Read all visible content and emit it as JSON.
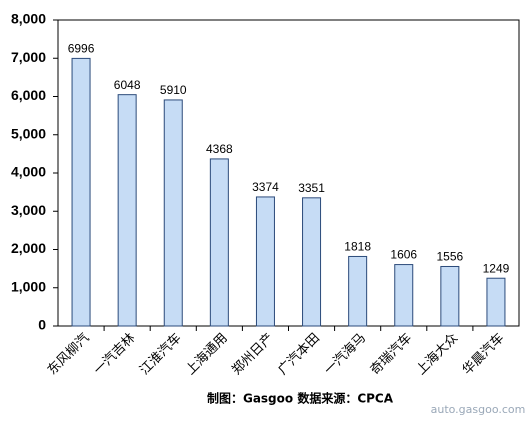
{
  "chart_data": {
    "type": "bar",
    "categories": [
      "东风柳汽",
      "一汽吉林",
      "江淮汽车",
      "上海通用",
      "郑州日产",
      "广汽本田",
      "一汽海马",
      "奇瑞汽车",
      "上海大众",
      "华晨汽车"
    ],
    "values": [
      6996,
      6048,
      5910,
      4368,
      3374,
      3351,
      1818,
      1606,
      1556,
      1249
    ],
    "color": "#c6dcf5",
    "ylim": [
      0,
      8000
    ],
    "yticks": [
      0,
      {
        "value": 1000,
        "label": "1,000"
      },
      {
        "value": 2000,
        "label": "2,000"
      },
      {
        "value": 3000,
        "label": "3,000"
      },
      {
        "value": 4000,
        "label": "4,000"
      },
      {
        "value": 5000,
        "label": "5,000"
      },
      {
        "value": 6000,
        "label": "6,000"
      },
      {
        "value": 7000,
        "label": "7,000"
      },
      {
        "value": 8000,
        "label": "8,000"
      }
    ],
    "grid": false,
    "source": "制图：Gasgoo 数据来源：CPCA",
    "watermark": "auto.gasgoo.com"
  }
}
